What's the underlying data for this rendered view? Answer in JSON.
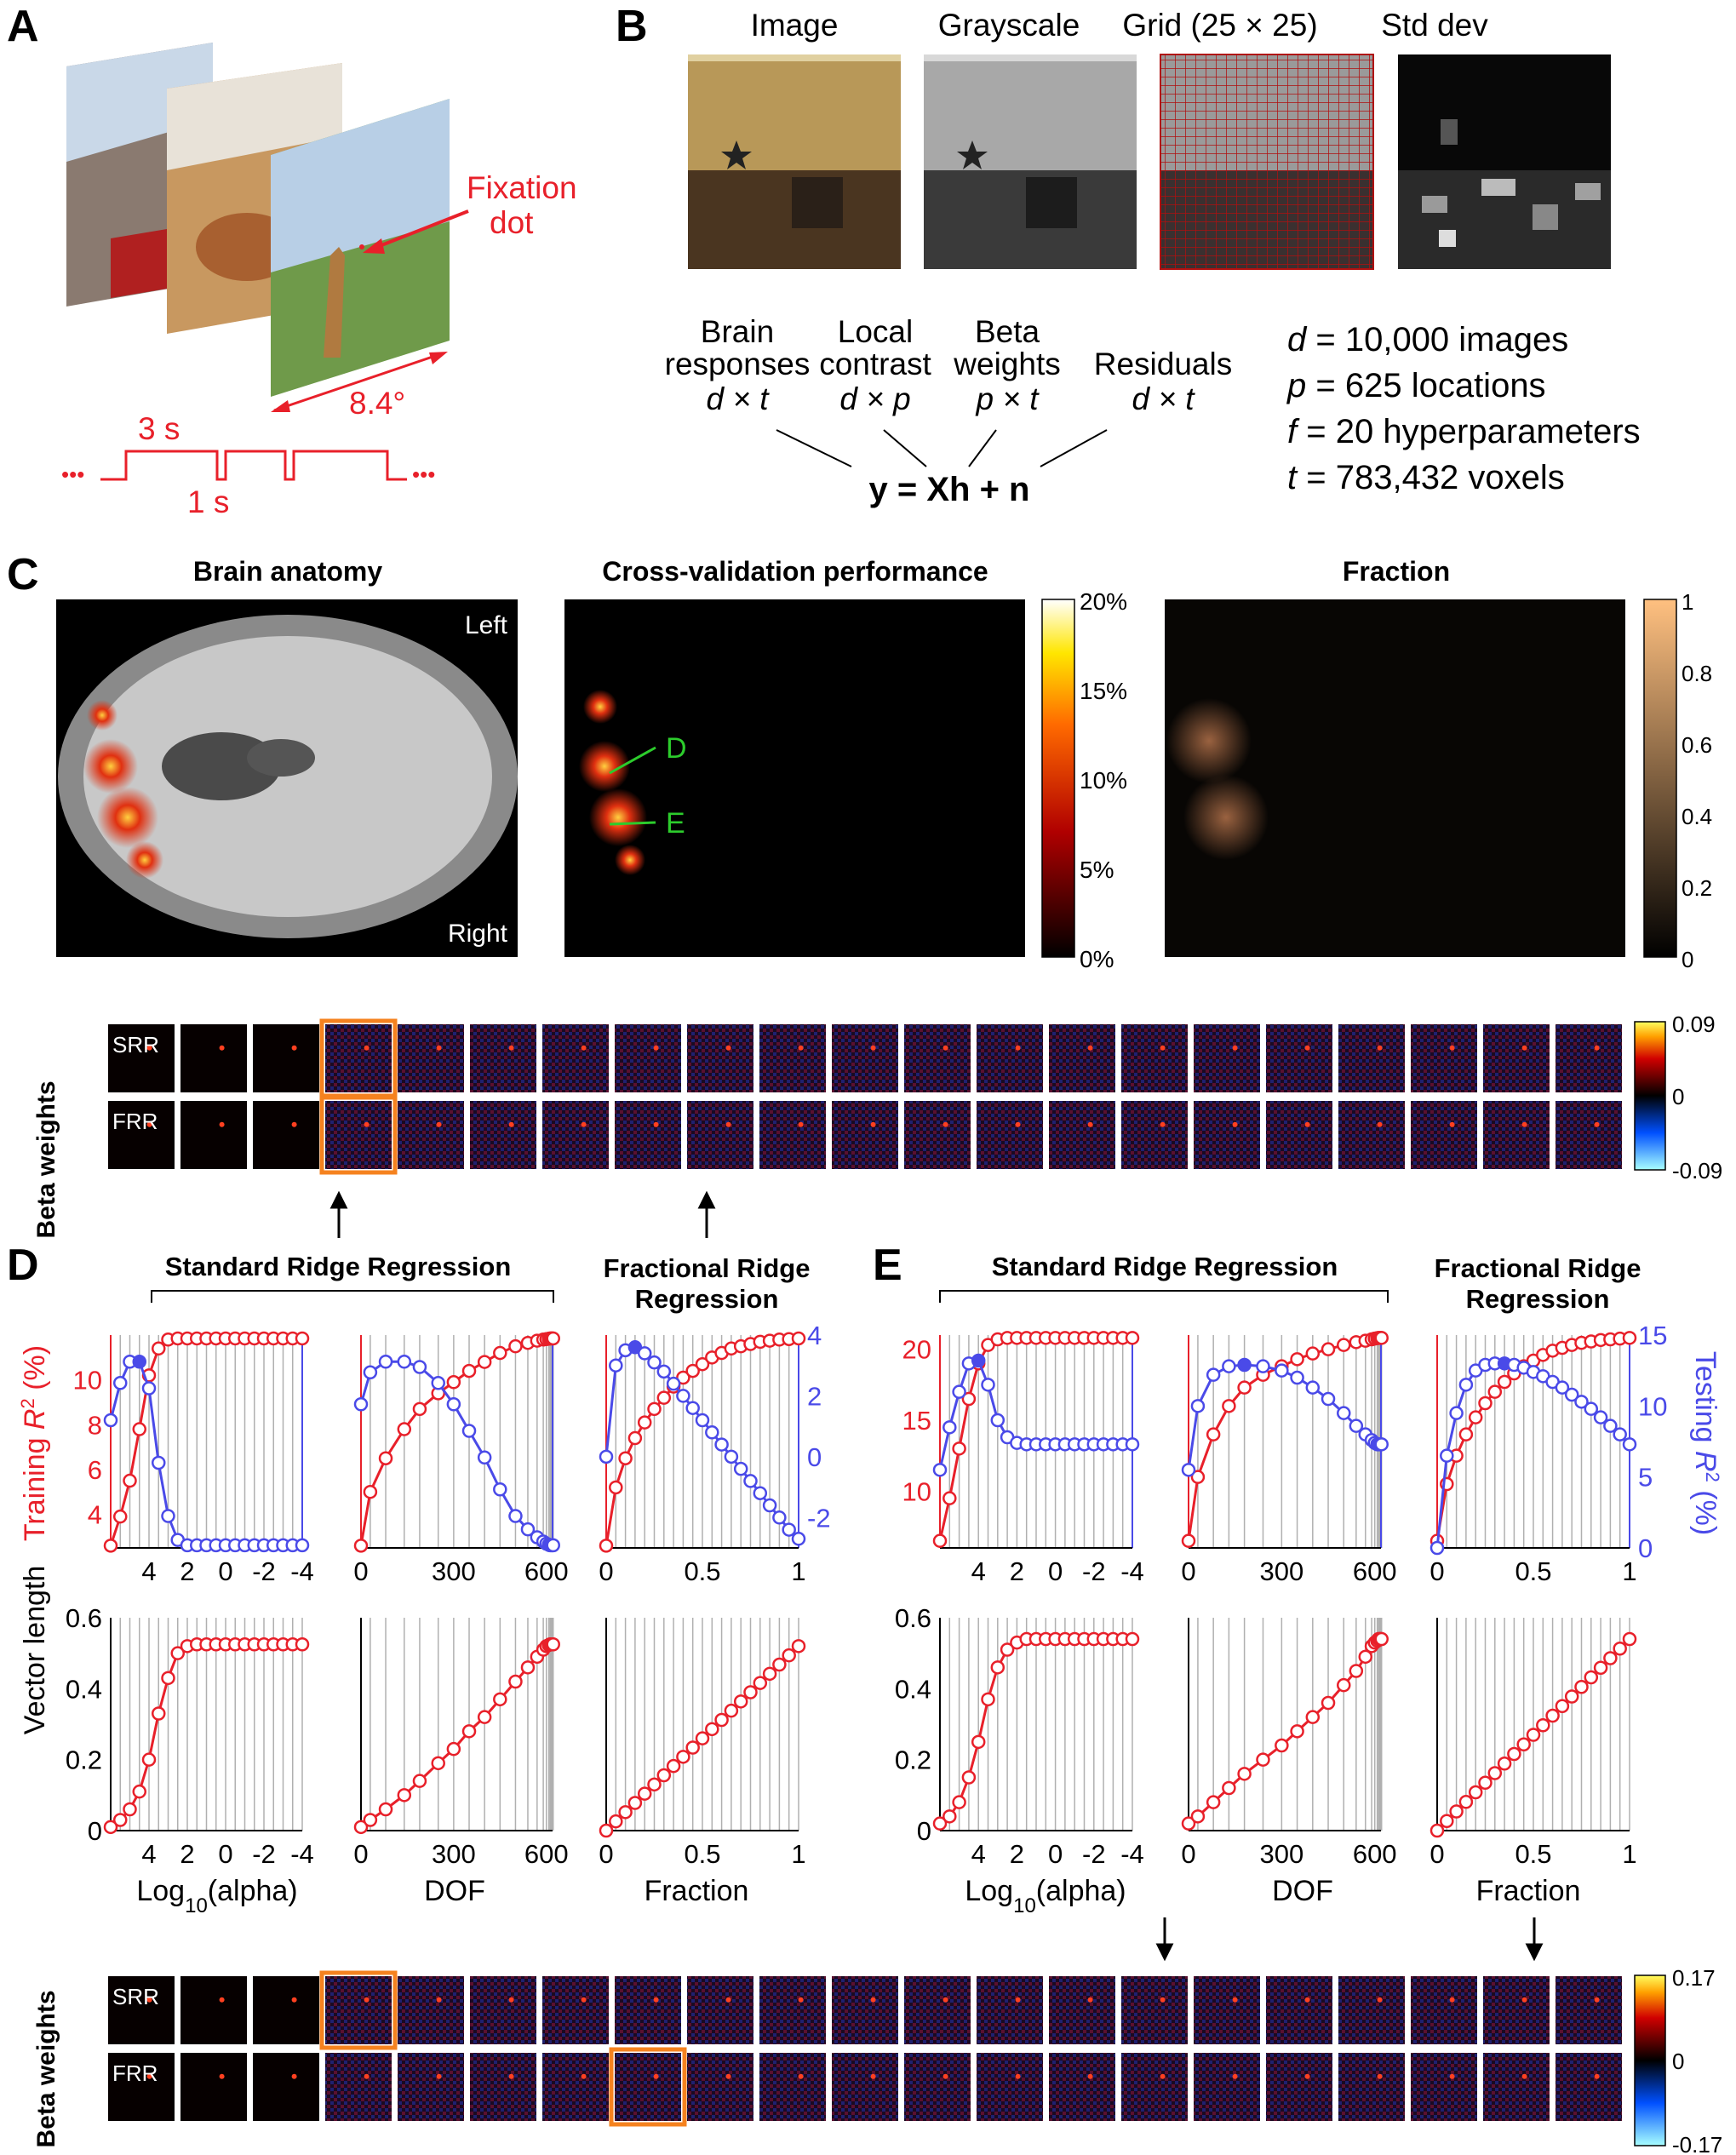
{
  "panels": {
    "A": "A",
    "B": "B",
    "C": "C",
    "D": "D",
    "E": "E"
  },
  "panel_a": {
    "fixation_line1": "Fixation",
    "fixation_line2": "dot",
    "angle": "8.4°",
    "on_time": "3 s",
    "off_time": "1 s",
    "dots": "•••"
  },
  "panel_b": {
    "headers": [
      "Image",
      "Grayscale",
      "Grid (25 × 25)",
      "Std dev"
    ],
    "terms": [
      {
        "line1": "Brain",
        "line2": "responses",
        "dims": "d × t"
      },
      {
        "line1": "Local",
        "line2": "contrast",
        "dims": "d × p"
      },
      {
        "line1": "Beta",
        "line2": "weights",
        "dims": "p × t"
      },
      {
        "line1": "",
        "line2": "Residuals",
        "dims": "d × t"
      }
    ],
    "equation": "y = Xh + n",
    "params": [
      {
        "sym": "d",
        "text": " = 10,000 images"
      },
      {
        "sym": "p",
        "text": " = 625 locations"
      },
      {
        "sym": "f",
        "text": " = 20 hyperparameters"
      },
      {
        "sym": "t",
        "text": " = 783,432 voxels"
      }
    ]
  },
  "panel_c": {
    "titles": [
      "Brain anatomy",
      "Cross-validation performance",
      "Fraction"
    ],
    "anatomy_left": "Left",
    "anatomy_right": "Right",
    "cv_ticks": [
      "20%",
      "15%",
      "10%",
      "5%",
      "0%"
    ],
    "cv_markers": [
      "D",
      "E"
    ],
    "fraction_ticks": [
      "1",
      "0.8",
      "0.6",
      "0.4",
      "0.2",
      "0"
    ],
    "beta_ylabel": "Beta weights",
    "rows": [
      "SRR",
      "FRR"
    ],
    "beta_ticks": [
      "0.09",
      "0",
      "-0.09"
    ]
  },
  "panel_d": {
    "srr_title": "Standard Ridge Regression",
    "frr_title_1": "Fractional Ridge",
    "frr_title_2": "Regression",
    "ylabel_train": "Training R² (%)",
    "ylabel_vec": "Vector length"
  },
  "panel_e": {
    "srr_title": "Standard Ridge Regression",
    "frr_title_1": "Fractional Ridge",
    "frr_title_2": "Regression",
    "ylabel_test": "Testing R² (%)",
    "beta_ylabel": "Beta weights",
    "rows": [
      "SRR",
      "FRR"
    ],
    "beta_ticks": [
      "0.17",
      "0",
      "-0.17"
    ]
  },
  "xlabels": [
    "Log10(alpha)",
    "DOF",
    "Fraction"
  ],
  "colors": {
    "training": "#e8202a",
    "testing": "#4a4ae8",
    "highlight": "#f5821f",
    "text": "#e8202a"
  },
  "chart_data": [
    {
      "type": "line",
      "name": "D-alpha",
      "x": [
        6,
        5.5,
        5,
        4.5,
        4,
        3.5,
        3,
        2.5,
        2,
        1.5,
        1,
        0.5,
        0,
        -0.5,
        -1,
        -1.5,
        -2,
        -2.5,
        -3,
        -3.5,
        -4
      ],
      "xlim": [
        6,
        -4
      ],
      "xticks": [
        4,
        2,
        0,
        -2,
        -4
      ],
      "ylim_train": [
        2.5,
        12
      ],
      "yticks_train": [
        4,
        6,
        8,
        10
      ],
      "train": [
        2.6,
        3.9,
        5.5,
        7.8,
        10.2,
        11.4,
        11.8,
        11.85,
        11.85,
        11.85,
        11.85,
        11.85,
        11.85,
        11.85,
        11.85,
        11.85,
        11.85,
        11.85,
        11.85,
        11.85,
        11.85
      ],
      "ylim_test": [
        0,
        4
      ],
      "test": [
        2.4,
        3.1,
        3.5,
        3.5,
        3.0,
        1.6,
        0.6,
        0.15,
        0.05,
        0.05,
        0.05,
        0.05,
        0.05,
        0.05,
        0.05,
        0.05,
        0.05,
        0.05,
        0.05,
        0.05,
        0.05
      ],
      "best_test_x": 4.5,
      "vec": [
        0.01,
        0.03,
        0.06,
        0.11,
        0.2,
        0.33,
        0.43,
        0.5,
        0.52,
        0.525,
        0.525,
        0.525,
        0.525,
        0.525,
        0.525,
        0.525,
        0.525,
        0.525,
        0.525,
        0.525,
        0.525
      ]
    },
    {
      "type": "line",
      "name": "D-dof",
      "x": [
        0,
        30,
        80,
        140,
        190,
        250,
        300,
        350,
        400,
        450,
        500,
        540,
        570,
        590,
        600,
        608,
        612,
        615,
        618,
        620,
        622
      ],
      "xlim": [
        0,
        620
      ],
      "xticks": [
        0,
        300,
        600
      ],
      "ylim_train": [
        2.5,
        12
      ],
      "train": [
        2.6,
        5.0,
        6.5,
        7.8,
        8.7,
        9.4,
        9.9,
        10.4,
        10.8,
        11.2,
        11.5,
        11.65,
        11.75,
        11.8,
        11.82,
        11.84,
        11.85,
        11.85,
        11.85,
        11.85,
        11.85
      ],
      "ylim_test": [
        0,
        4
      ],
      "test": [
        2.7,
        3.3,
        3.5,
        3.5,
        3.4,
        3.1,
        2.7,
        2.2,
        1.7,
        1.1,
        0.6,
        0.35,
        0.2,
        0.12,
        0.08,
        0.06,
        0.05,
        0.05,
        0.05,
        0.05,
        0.05
      ],
      "best_test_x": 180,
      "vec": [
        0.01,
        0.03,
        0.06,
        0.1,
        0.14,
        0.19,
        0.23,
        0.28,
        0.32,
        0.37,
        0.42,
        0.46,
        0.49,
        0.51,
        0.52,
        0.523,
        0.525,
        0.525,
        0.525,
        0.525,
        0.525
      ]
    },
    {
      "type": "line",
      "name": "D-frac",
      "x": [
        0,
        0.05,
        0.1,
        0.15,
        0.2,
        0.25,
        0.3,
        0.35,
        0.4,
        0.45,
        0.5,
        0.55,
        0.6,
        0.65,
        0.7,
        0.75,
        0.8,
        0.85,
        0.9,
        0.95,
        1
      ],
      "xlim": [
        0,
        1
      ],
      "xticks": [
        0,
        0.5,
        1
      ],
      "ylim_train": [
        2.5,
        12
      ],
      "train": [
        2.6,
        5.2,
        6.5,
        7.4,
        8.1,
        8.7,
        9.2,
        9.7,
        10.1,
        10.4,
        10.7,
        11.0,
        11.2,
        11.4,
        11.5,
        11.6,
        11.7,
        11.75,
        11.8,
        11.82,
        11.85
      ],
      "ylim_test": [
        -3,
        4
      ],
      "yticks_test": [
        -2,
        0,
        2,
        4
      ],
      "test": [
        0,
        3.0,
        3.5,
        3.6,
        3.4,
        3.1,
        2.8,
        2.4,
        2.0,
        1.6,
        1.2,
        0.8,
        0.4,
        0.0,
        -0.4,
        -0.8,
        -1.2,
        -1.6,
        -2.0,
        -2.4,
        -2.7
      ],
      "best_test_x": 0.15,
      "vec": [
        0,
        0.026,
        0.052,
        0.078,
        0.104,
        0.13,
        0.156,
        0.182,
        0.208,
        0.234,
        0.26,
        0.286,
        0.312,
        0.338,
        0.364,
        0.39,
        0.416,
        0.442,
        0.468,
        0.494,
        0.52
      ]
    },
    {
      "type": "line",
      "name": "E-alpha",
      "x": [
        6,
        5.5,
        5,
        4.5,
        4,
        3.5,
        3,
        2.5,
        2,
        1.5,
        1,
        0.5,
        0,
        -0.5,
        -1,
        -1.5,
        -2,
        -2.5,
        -3,
        -3.5,
        -4
      ],
      "xlim": [
        6,
        -4
      ],
      "xticks": [
        4,
        2,
        0,
        -2,
        -4
      ],
      "ylim_train": [
        6,
        21
      ],
      "yticks_train": [
        10,
        15,
        20
      ],
      "train": [
        6.5,
        9.5,
        13,
        16.5,
        19,
        20.3,
        20.7,
        20.8,
        20.8,
        20.8,
        20.8,
        20.8,
        20.8,
        20.8,
        20.8,
        20.8,
        20.8,
        20.8,
        20.8,
        20.8,
        20.8
      ],
      "ylim_test": [
        0,
        15
      ],
      "test": [
        5.5,
        8.5,
        11,
        13,
        13.2,
        11.5,
        9,
        7.8,
        7.4,
        7.3,
        7.3,
        7.3,
        7.3,
        7.3,
        7.3,
        7.3,
        7.3,
        7.3,
        7.3,
        7.3,
        7.3
      ],
      "best_test_x": 4,
      "vec": [
        0.02,
        0.04,
        0.08,
        0.15,
        0.25,
        0.37,
        0.46,
        0.51,
        0.53,
        0.54,
        0.54,
        0.54,
        0.54,
        0.54,
        0.54,
        0.54,
        0.54,
        0.54,
        0.54,
        0.54,
        0.54
      ]
    },
    {
      "type": "line",
      "name": "E-dof",
      "x": [
        0,
        30,
        80,
        130,
        180,
        240,
        300,
        350,
        400,
        450,
        500,
        540,
        570,
        590,
        600,
        608,
        612,
        615,
        618,
        620,
        622
      ],
      "xlim": [
        0,
        620
      ],
      "xticks": [
        0,
        300,
        600
      ],
      "ylim_train": [
        6,
        21
      ],
      "train": [
        6.5,
        11,
        14,
        16,
        17.3,
        18.2,
        18.8,
        19.3,
        19.7,
        20.0,
        20.3,
        20.5,
        20.6,
        20.7,
        20.75,
        20.78,
        20.8,
        20.8,
        20.8,
        20.8,
        20.8
      ],
      "ylim_test": [
        0,
        15
      ],
      "test": [
        5.5,
        10,
        12.2,
        12.8,
        12.9,
        12.8,
        12.5,
        12.0,
        11.3,
        10.5,
        9.5,
        8.6,
        8.0,
        7.6,
        7.4,
        7.3,
        7.3,
        7.3,
        7.3,
        7.3,
        7.3
      ],
      "best_test_x": 180,
      "vec": [
        0.02,
        0.04,
        0.08,
        0.12,
        0.16,
        0.2,
        0.24,
        0.28,
        0.32,
        0.36,
        0.41,
        0.45,
        0.49,
        0.52,
        0.53,
        0.535,
        0.54,
        0.54,
        0.54,
        0.54,
        0.54
      ]
    },
    {
      "type": "line",
      "name": "E-frac",
      "x": [
        0,
        0.05,
        0.1,
        0.15,
        0.2,
        0.25,
        0.3,
        0.35,
        0.4,
        0.45,
        0.5,
        0.55,
        0.6,
        0.65,
        0.7,
        0.75,
        0.8,
        0.85,
        0.9,
        0.95,
        1
      ],
      "xlim": [
        0,
        1
      ],
      "xticks": [
        0,
        0.5,
        1
      ],
      "ylim_train": [
        6,
        21
      ],
      "train": [
        6.5,
        10.5,
        12.5,
        14.0,
        15.2,
        16.2,
        17.0,
        17.7,
        18.3,
        18.8,
        19.2,
        19.6,
        19.9,
        20.1,
        20.3,
        20.45,
        20.55,
        20.65,
        20.7,
        20.75,
        20.8
      ],
      "ylim_test": [
        0,
        15
      ],
      "yticks_test": [
        0,
        5,
        10,
        15
      ],
      "test": [
        0,
        6.5,
        9.5,
        11.5,
        12.5,
        12.9,
        13.0,
        13.0,
        12.9,
        12.7,
        12.4,
        12.1,
        11.7,
        11.3,
        10.8,
        10.3,
        9.8,
        9.2,
        8.6,
        8.0,
        7.3
      ],
      "best_test_x": 0.35,
      "vec": [
        0,
        0.027,
        0.054,
        0.081,
        0.108,
        0.135,
        0.162,
        0.189,
        0.216,
        0.243,
        0.27,
        0.297,
        0.324,
        0.351,
        0.378,
        0.405,
        0.432,
        0.459,
        0.486,
        0.513,
        0.54
      ]
    }
  ],
  "vec_axis": {
    "ylim": [
      0,
      0.6
    ],
    "yticks": [
      0,
      0.2,
      0.4,
      0.6
    ]
  }
}
